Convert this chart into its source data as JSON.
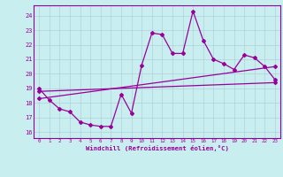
{
  "xlabel": "Windchill (Refroidissement éolien,°C)",
  "background_color": "#c8eef0",
  "line_color": "#990099",
  "grid_color": "#b0d0d8",
  "x_ticks": [
    0,
    1,
    2,
    3,
    4,
    5,
    6,
    7,
    8,
    9,
    10,
    11,
    12,
    13,
    14,
    15,
    16,
    17,
    18,
    19,
    20,
    21,
    22,
    23
  ],
  "y_ticks": [
    16,
    17,
    18,
    19,
    20,
    21,
    22,
    23,
    24
  ],
  "xlim": [
    -0.5,
    23.5
  ],
  "ylim": [
    15.6,
    24.7
  ],
  "series1_x": [
    0,
    1,
    2,
    3,
    4,
    5,
    6,
    7,
    8,
    9,
    10,
    11,
    12,
    13,
    14,
    15,
    16,
    17,
    18,
    19,
    20,
    21,
    22,
    23
  ],
  "series1_y": [
    19.0,
    18.2,
    17.6,
    17.4,
    16.7,
    16.5,
    16.4,
    16.4,
    18.6,
    17.3,
    20.6,
    22.8,
    22.7,
    21.4,
    21.4,
    24.3,
    22.3,
    21.0,
    20.7,
    20.3,
    21.3,
    21.1,
    20.5,
    19.6
  ],
  "series2_x": [
    0,
    23
  ],
  "series2_y": [
    18.3,
    20.5
  ],
  "series3_x": [
    0,
    23
  ],
  "series3_y": [
    18.8,
    19.4
  ]
}
